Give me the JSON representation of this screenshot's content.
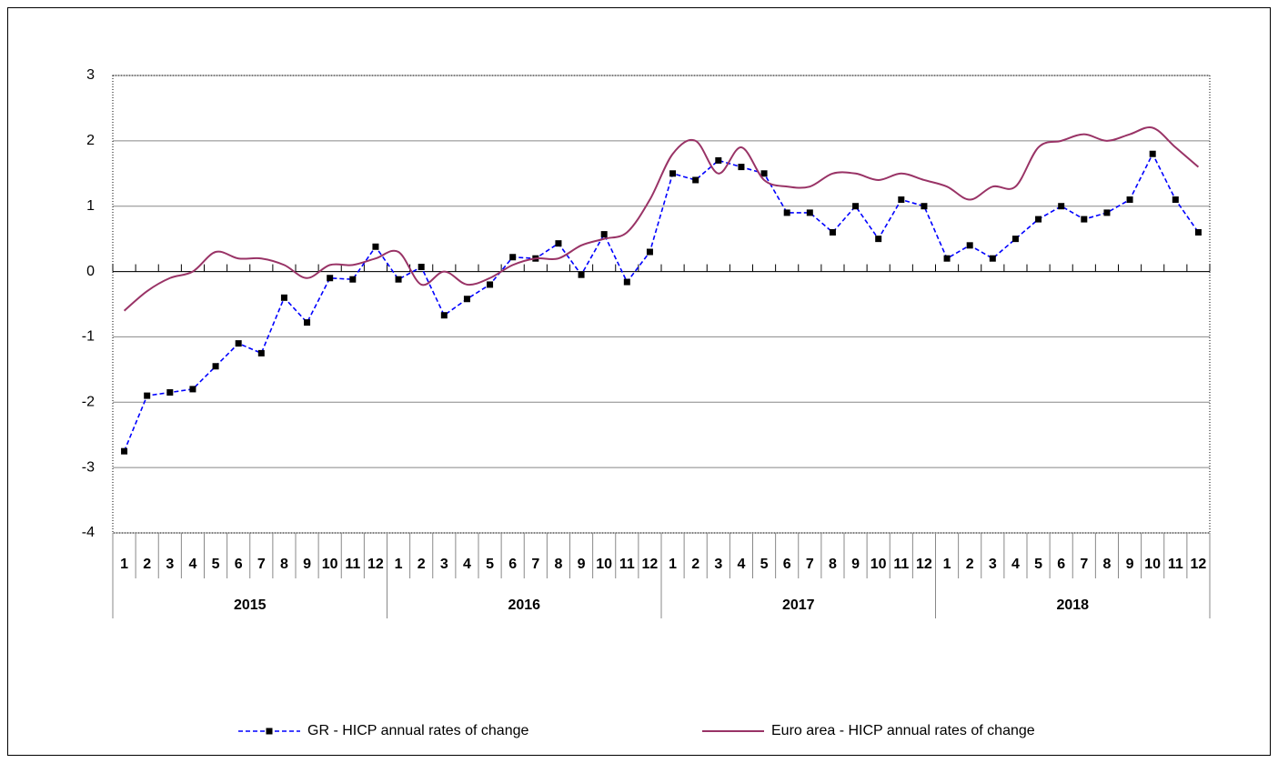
{
  "chart_data": {
    "type": "line",
    "categories": [
      "1",
      "2",
      "3",
      "4",
      "5",
      "6",
      "7",
      "8",
      "9",
      "10",
      "11",
      "12",
      "1",
      "2",
      "3",
      "4",
      "5",
      "6",
      "7",
      "8",
      "9",
      "10",
      "11",
      "12",
      "1",
      "2",
      "3",
      "4",
      "5",
      "6",
      "7",
      "8",
      "9",
      "10",
      "11",
      "12",
      "1",
      "2",
      "3",
      "4",
      "5",
      "6",
      "7",
      "8",
      "9",
      "10",
      "11",
      "12"
    ],
    "groups": [
      "2015",
      "2016",
      "2017",
      "2018"
    ],
    "series": [
      {
        "name": "GR - HICP annual rates of change",
        "color": "#0000ff",
        "marker_color": "#000000",
        "dashed": true,
        "values": [
          -2.75,
          -1.9,
          -1.85,
          -1.8,
          -1.45,
          -1.1,
          -1.25,
          -0.4,
          -0.78,
          -0.1,
          -0.12,
          0.38,
          -0.12,
          0.07,
          -0.67,
          -0.42,
          -0.2,
          0.22,
          0.2,
          0.43,
          -0.05,
          0.57,
          -0.16,
          0.3,
          1.5,
          1.4,
          1.7,
          1.6,
          1.5,
          0.9,
          0.9,
          0.6,
          1.0,
          0.5,
          1.1,
          1.0,
          0.2,
          0.4,
          0.2,
          0.5,
          0.8,
          1.0,
          0.8,
          0.9,
          1.1,
          1.8,
          1.1,
          0.6
        ]
      },
      {
        "name": "Euro area - HICP annual rates of change",
        "color": "#993366",
        "smooth": true,
        "values": [
          -0.6,
          -0.3,
          -0.1,
          0.0,
          0.3,
          0.2,
          0.2,
          0.1,
          -0.1,
          0.1,
          0.1,
          0.2,
          0.3,
          -0.2,
          0.0,
          -0.2,
          -0.1,
          0.1,
          0.2,
          0.2,
          0.4,
          0.5,
          0.6,
          1.1,
          1.8,
          2.0,
          1.5,
          1.9,
          1.4,
          1.3,
          1.3,
          1.5,
          1.5,
          1.4,
          1.5,
          1.4,
          1.3,
          1.1,
          1.3,
          1.3,
          1.9,
          2.0,
          2.1,
          2.0,
          2.1,
          2.2,
          1.9,
          1.6
        ]
      }
    ],
    "ylim": [
      -4,
      3
    ],
    "yticks": [
      -4,
      -3,
      -2,
      -1,
      0,
      1,
      2,
      3
    ],
    "grid": true
  }
}
